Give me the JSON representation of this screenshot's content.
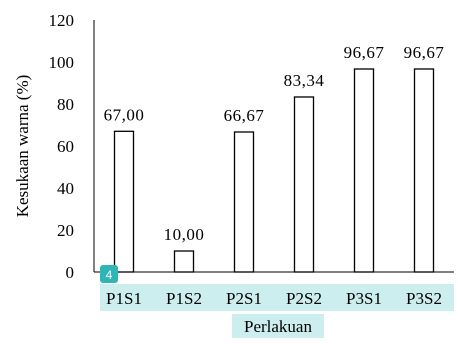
{
  "chart_data": {
    "type": "bar",
    "categories": [
      "P1S1",
      "P1S2",
      "P2S1",
      "P2S2",
      "P3S1",
      "P3S2"
    ],
    "values": [
      67.0,
      10.0,
      66.67,
      83.34,
      96.67,
      96.67
    ],
    "data_labels": [
      "67,00",
      "10,00",
      "66,67",
      "83,34",
      "96,67",
      "96,67"
    ],
    "ylabel": "Kesukaan warna (%)",
    "xlabel": "Perlakuan",
    "ylim": [
      0,
      120
    ],
    "yticks": [
      0,
      20,
      40,
      60,
      80,
      100,
      120
    ],
    "grid": false,
    "legend": "none",
    "bar_fill": "#ffffff",
    "bar_stroke": "#000000",
    "highlight_color": "#cdeeee",
    "badge": {
      "text": "4",
      "color": "#2fb5b5"
    }
  }
}
